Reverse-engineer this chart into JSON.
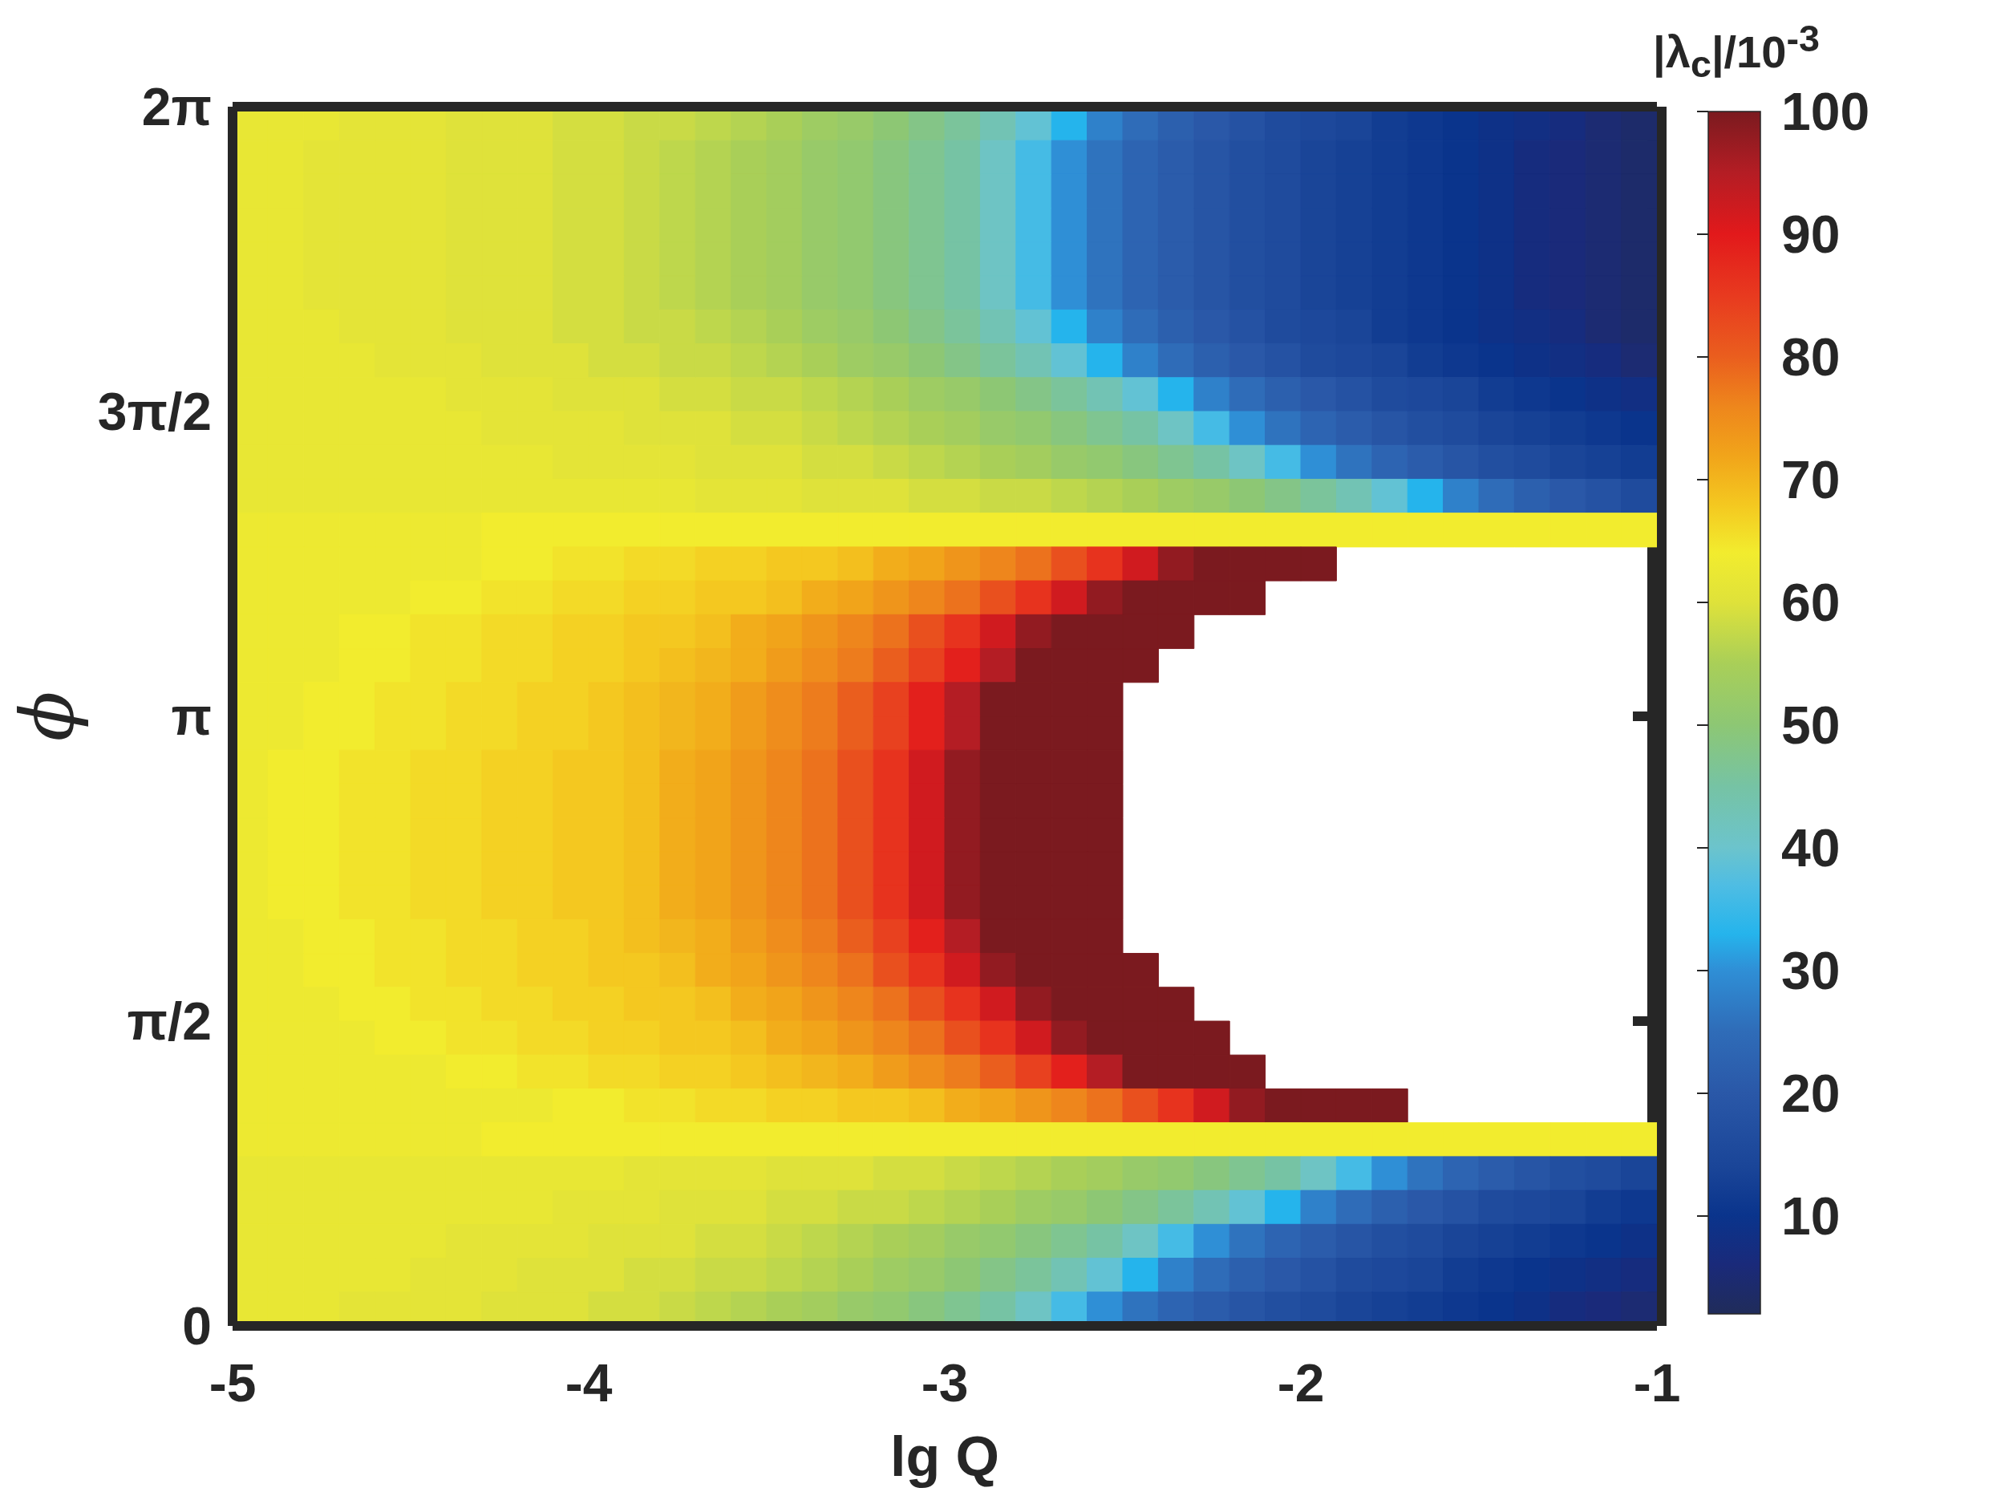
{
  "chart_data": {
    "type": "heatmap",
    "xlabel": "lg Q",
    "ylabel": "ϕ",
    "clabel": "|λ$_{c}$|/10$^{-3}$",
    "x": [
      -4.95,
      -4.85,
      -4.75,
      -4.65,
      -4.55,
      -4.45,
      -4.35,
      -4.25,
      -4.15,
      -4.05,
      -3.95,
      -3.85,
      -3.75,
      -3.65,
      -3.55,
      -3.45,
      -3.35,
      -3.25,
      -3.15,
      -3.05,
      -2.95,
      -2.85,
      -2.75,
      -2.65,
      -2.55,
      -2.45,
      -2.35,
      -2.25,
      -2.15,
      -2.05,
      -1.95,
      -1.85,
      -1.75,
      -1.65,
      -1.55,
      -1.45,
      -1.35,
      -1.25,
      -1.15,
      -1.05
    ],
    "cells": [
      [
        62,
        62,
        62,
        61,
        61,
        61,
        60,
        60,
        60,
        59,
        59,
        58,
        58,
        57,
        56,
        55,
        53,
        52,
        50,
        48,
        46,
        43,
        39,
        33,
        28,
        25,
        22,
        20,
        18,
        16,
        15,
        14,
        12,
        11,
        10,
        9,
        8,
        7,
        5,
        4
      ],
      [
        62,
        62,
        61,
        61,
        61,
        61,
        60,
        60,
        60,
        59,
        59,
        58,
        57,
        56,
        55,
        54,
        52,
        51,
        49,
        47,
        45,
        41,
        36,
        30,
        26,
        23,
        21,
        19,
        17,
        16,
        14,
        13,
        12,
        11,
        10,
        9,
        7,
        6,
        5,
        4
      ],
      [
        62,
        62,
        61,
        61,
        61,
        61,
        60,
        60,
        60,
        59,
        59,
        58,
        57,
        56,
        55,
        54,
        52,
        51,
        49,
        47,
        45,
        41,
        36,
        30,
        26,
        23,
        21,
        19,
        17,
        16,
        14,
        13,
        12,
        11,
        10,
        9,
        7,
        6,
        5,
        4
      ],
      [
        62,
        62,
        61,
        61,
        61,
        61,
        60,
        60,
        60,
        59,
        59,
        58,
        57,
        56,
        55,
        54,
        52,
        51,
        49,
        47,
        45,
        41,
        36,
        30,
        26,
        23,
        21,
        19,
        17,
        16,
        14,
        13,
        12,
        11,
        10,
        9,
        7,
        6,
        5,
        4
      ],
      [
        62,
        62,
        61,
        61,
        61,
        61,
        60,
        60,
        60,
        59,
        59,
        58,
        57,
        56,
        55,
        54,
        52,
        51,
        49,
        47,
        45,
        41,
        36,
        30,
        26,
        23,
        21,
        19,
        17,
        16,
        14,
        13,
        12,
        11,
        10,
        9,
        7,
        6,
        5,
        4
      ],
      [
        62,
        62,
        61,
        61,
        61,
        61,
        60,
        60,
        60,
        59,
        59,
        58,
        57,
        56,
        55,
        54,
        52,
        51,
        49,
        47,
        45,
        41,
        36,
        30,
        26,
        23,
        21,
        19,
        17,
        16,
        14,
        13,
        12,
        11,
        10,
        9,
        7,
        6,
        5,
        4
      ],
      [
        62,
        62,
        62,
        61,
        61,
        61,
        60,
        60,
        60,
        59,
        59,
        58,
        58,
        57,
        56,
        55,
        53,
        52,
        50,
        48,
        46,
        43,
        39,
        33,
        28,
        25,
        22,
        20,
        18,
        16,
        15,
        14,
        12,
        11,
        10,
        9,
        8,
        7,
        5,
        4
      ],
      [
        62,
        62,
        62,
        62,
        61,
        61,
        61,
        60,
        60,
        60,
        59,
        59,
        58,
        58,
        57,
        56,
        55,
        53,
        52,
        50,
        48,
        46,
        43,
        39,
        33,
        28,
        25,
        22,
        20,
        18,
        16,
        15,
        14,
        12,
        11,
        10,
        9,
        8,
        7,
        5
      ],
      [
        62,
        62,
        62,
        62,
        62,
        62,
        61,
        61,
        61,
        60,
        60,
        60,
        59,
        59,
        58,
        58,
        57,
        56,
        55,
        53,
        52,
        50,
        48,
        46,
        43,
        39,
        33,
        28,
        25,
        22,
        20,
        18,
        16,
        15,
        14,
        12,
        11,
        10,
        9,
        8
      ],
      [
        62,
        62,
        62,
        62,
        62,
        62,
        62,
        61,
        61,
        61,
        61,
        60,
        60,
        60,
        59,
        59,
        58,
        57,
        56,
        55,
        54,
        52,
        51,
        49,
        47,
        45,
        41,
        36,
        30,
        26,
        23,
        21,
        19,
        17,
        16,
        14,
        13,
        12,
        11,
        10
      ],
      [
        62,
        62,
        62,
        62,
        62,
        62,
        62,
        62,
        62,
        61,
        61,
        61,
        61,
        60,
        60,
        60,
        59,
        59,
        58,
        57,
        56,
        55,
        54,
        52,
        51,
        49,
        47,
        45,
        41,
        36,
        30,
        26,
        23,
        21,
        19,
        17,
        16,
        14,
        13,
        12
      ],
      [
        62,
        62,
        62,
        62,
        62,
        62,
        62,
        62,
        62,
        62,
        62,
        62,
        62,
        61,
        61,
        61,
        60,
        60,
        60,
        59,
        59,
        58,
        58,
        57,
        56,
        55,
        53,
        52,
        50,
        48,
        46,
        43,
        39,
        33,
        28,
        25,
        22,
        20,
        18,
        16
      ],
      [
        63,
        63,
        63,
        63,
        63,
        63,
        63,
        64,
        64,
        64,
        64,
        64,
        64,
        64,
        64,
        64,
        64,
        64,
        64,
        64,
        64,
        64,
        64,
        64,
        64,
        64,
        64,
        64,
        64,
        64,
        64,
        64,
        64,
        64,
        64,
        64,
        64,
        64,
        64,
        64
      ],
      [
        63,
        63,
        63,
        63,
        63,
        63,
        63,
        64,
        64,
        65,
        65,
        66,
        66,
        67,
        67,
        68,
        68,
        69,
        71,
        72,
        74,
        76,
        78,
        82,
        86,
        92,
        98,
        100,
        100,
        100,
        100,
        null,
        null,
        null,
        null,
        null,
        null,
        null,
        null,
        null
      ],
      [
        63,
        63,
        63,
        63,
        63,
        64,
        64,
        65,
        65,
        66,
        66,
        67,
        67,
        68,
        68,
        69,
        71,
        72,
        74,
        76,
        78,
        82,
        86,
        92,
        98,
        100,
        100,
        100,
        100,
        null,
        null,
        null,
        null,
        null,
        null,
        null,
        null,
        null,
        null,
        null
      ],
      [
        63,
        63,
        63,
        64,
        64,
        65,
        65,
        66,
        66,
        67,
        67,
        68,
        68,
        69,
        71,
        72,
        74,
        76,
        78,
        82,
        86,
        92,
        98,
        100,
        100,
        100,
        100,
        null,
        null,
        null,
        null,
        null,
        null,
        null,
        null,
        null,
        null,
        null,
        null,
        null
      ],
      [
        63,
        63,
        63,
        64,
        64,
        65,
        65,
        66,
        66,
        67,
        67,
        68,
        69,
        70,
        71,
        73,
        75,
        77,
        80,
        84,
        89,
        95,
        100,
        100,
        100,
        100,
        null,
        null,
        null,
        null,
        null,
        null,
        null,
        null,
        null,
        null,
        null,
        null,
        null,
        null
      ],
      [
        63,
        63,
        64,
        64,
        65,
        65,
        66,
        66,
        67,
        67,
        68,
        69,
        70,
        71,
        73,
        75,
        77,
        80,
        84,
        89,
        95,
        100,
        100,
        100,
        100,
        null,
        null,
        null,
        null,
        null,
        null,
        null,
        null,
        null,
        null,
        null,
        null,
        null,
        null,
        null
      ],
      [
        63,
        63,
        64,
        64,
        65,
        65,
        66,
        66,
        67,
        67,
        68,
        69,
        70,
        71,
        73,
        75,
        77,
        80,
        84,
        89,
        95,
        100,
        100,
        100,
        100,
        null,
        null,
        null,
        null,
        null,
        null,
        null,
        null,
        null,
        null,
        null,
        null,
        null,
        null,
        null
      ],
      [
        63,
        64,
        64,
        65,
        65,
        66,
        66,
        67,
        67,
        68,
        68,
        69,
        71,
        72,
        74,
        76,
        78,
        82,
        86,
        92,
        98,
        100,
        100,
        100,
        100,
        null,
        null,
        null,
        null,
        null,
        null,
        null,
        null,
        null,
        null,
        null,
        null,
        null,
        null,
        null
      ],
      [
        63,
        64,
        64,
        65,
        65,
        66,
        66,
        67,
        67,
        68,
        68,
        69,
        71,
        72,
        74,
        76,
        78,
        82,
        86,
        92,
        98,
        100,
        100,
        100,
        100,
        null,
        null,
        null,
        null,
        null,
        null,
        null,
        null,
        null,
        null,
        null,
        null,
        null,
        null,
        null
      ],
      [
        63,
        64,
        64,
        65,
        65,
        66,
        66,
        67,
        67,
        68,
        68,
        69,
        71,
        72,
        74,
        76,
        78,
        82,
        86,
        92,
        98,
        100,
        100,
        100,
        100,
        null,
        null,
        null,
        null,
        null,
        null,
        null,
        null,
        null,
        null,
        null,
        null,
        null,
        null,
        null
      ],
      [
        63,
        64,
        64,
        65,
        65,
        66,
        66,
        67,
        67,
        68,
        68,
        69,
        71,
        72,
        74,
        76,
        78,
        82,
        86,
        92,
        98,
        100,
        100,
        100,
        100,
        null,
        null,
        null,
        null,
        null,
        null,
        null,
        null,
        null,
        null,
        null,
        null,
        null,
        null,
        null
      ],
      [
        63,
        64,
        64,
        65,
        65,
        66,
        66,
        67,
        67,
        68,
        68,
        69,
        71,
        72,
        74,
        76,
        78,
        82,
        86,
        92,
        98,
        100,
        100,
        100,
        100,
        null,
        null,
        null,
        null,
        null,
        null,
        null,
        null,
        null,
        null,
        null,
        null,
        null,
        null,
        null
      ],
      [
        63,
        63,
        64,
        64,
        65,
        65,
        66,
        66,
        67,
        67,
        68,
        69,
        70,
        71,
        73,
        75,
        77,
        80,
        84,
        89,
        95,
        100,
        100,
        100,
        100,
        null,
        null,
        null,
        null,
        null,
        null,
        null,
        null,
        null,
        null,
        null,
        null,
        null,
        null,
        null
      ],
      [
        63,
        63,
        64,
        64,
        65,
        65,
        66,
        66,
        67,
        67,
        68,
        68,
        69,
        71,
        72,
        74,
        76,
        78,
        82,
        86,
        92,
        98,
        100,
        100,
        100,
        100,
        null,
        null,
        null,
        null,
        null,
        null,
        null,
        null,
        null,
        null,
        null,
        null,
        null,
        null
      ],
      [
        63,
        63,
        63,
        64,
        64,
        65,
        65,
        66,
        66,
        67,
        67,
        68,
        68,
        69,
        71,
        72,
        74,
        76,
        78,
        82,
        86,
        92,
        98,
        100,
        100,
        100,
        100,
        null,
        null,
        null,
        null,
        null,
        null,
        null,
        null,
        null,
        null,
        null,
        null,
        null
      ],
      [
        63,
        63,
        63,
        63,
        64,
        64,
        65,
        65,
        66,
        66,
        67,
        67,
        68,
        68,
        69,
        71,
        72,
        74,
        76,
        78,
        82,
        86,
        92,
        98,
        100,
        100,
        100,
        100,
        null,
        null,
        null,
        null,
        null,
        null,
        null,
        null,
        null,
        null,
        null,
        null
      ],
      [
        63,
        63,
        63,
        63,
        63,
        63,
        64,
        64,
        65,
        65,
        66,
        66,
        67,
        67,
        68,
        69,
        70,
        71,
        73,
        75,
        77,
        80,
        84,
        89,
        95,
        100,
        100,
        100,
        100,
        null,
        null,
        null,
        null,
        null,
        null,
        null,
        null,
        null,
        null,
        null
      ],
      [
        63,
        63,
        63,
        63,
        63,
        63,
        63,
        63,
        63,
        64,
        64,
        65,
        65,
        66,
        66,
        67,
        67,
        68,
        68,
        69,
        71,
        72,
        74,
        76,
        78,
        82,
        86,
        92,
        98,
        100,
        100,
        100,
        100,
        null,
        null,
        null,
        null,
        null,
        null,
        null
      ],
      [
        63,
        63,
        63,
        63,
        63,
        63,
        63,
        64,
        64,
        64,
        64,
        64,
        64,
        64,
        64,
        64,
        64,
        64,
        64,
        64,
        64,
        64,
        64,
        64,
        64,
        64,
        64,
        64,
        64,
        64,
        64,
        64,
        64,
        64,
        64,
        64,
        64,
        64,
        64,
        64
      ],
      [
        62,
        62,
        62,
        62,
        62,
        62,
        62,
        62,
        62,
        62,
        62,
        61,
        61,
        61,
        61,
        60,
        60,
        60,
        59,
        59,
        58,
        57,
        56,
        55,
        54,
        52,
        51,
        49,
        47,
        45,
        41,
        36,
        30,
        26,
        23,
        21,
        19,
        17,
        16,
        14
      ],
      [
        62,
        62,
        62,
        62,
        62,
        62,
        62,
        62,
        62,
        61,
        61,
        61,
        60,
        60,
        60,
        59,
        59,
        58,
        58,
        57,
        56,
        55,
        53,
        52,
        50,
        48,
        46,
        43,
        39,
        33,
        28,
        25,
        22,
        20,
        18,
        16,
        15,
        14,
        12,
        11
      ],
      [
        62,
        62,
        62,
        62,
        62,
        62,
        61,
        61,
        61,
        61,
        60,
        60,
        60,
        59,
        59,
        58,
        57,
        56,
        55,
        54,
        52,
        51,
        49,
        47,
        45,
        41,
        36,
        30,
        26,
        23,
        21,
        19,
        17,
        16,
        14,
        13,
        12,
        11,
        10,
        9
      ],
      [
        62,
        62,
        62,
        62,
        62,
        61,
        61,
        61,
        60,
        60,
        60,
        59,
        59,
        58,
        58,
        57,
        56,
        55,
        53,
        52,
        50,
        48,
        46,
        43,
        39,
        33,
        28,
        25,
        22,
        20,
        18,
        16,
        15,
        14,
        12,
        11,
        10,
        9,
        8,
        7
      ],
      [
        62,
        62,
        62,
        61,
        61,
        61,
        61,
        60,
        60,
        60,
        59,
        59,
        58,
        57,
        56,
        55,
        54,
        52,
        51,
        49,
        47,
        45,
        41,
        36,
        30,
        26,
        23,
        21,
        19,
        17,
        16,
        14,
        13,
        12,
        11,
        10,
        9,
        7,
        6,
        5
      ]
    ],
    "xlim": [
      -5,
      -1
    ],
    "xticks": [
      -5,
      -4,
      -3,
      -2,
      -1
    ],
    "ylim": [
      0,
      6.2832
    ],
    "yticks": [
      0,
      {
        "value": 1.5708,
        "label": "π/2"
      },
      {
        "value": 3.1416,
        "label": "π"
      },
      {
        "value": 4.7124,
        "label": "3π/2"
      },
      {
        "value": 6.2832,
        "label": "2π"
      }
    ],
    "clim": [
      2,
      100
    ],
    "cticks": [
      10,
      20,
      30,
      40,
      50,
      60,
      70,
      80,
      90,
      100
    ]
  }
}
